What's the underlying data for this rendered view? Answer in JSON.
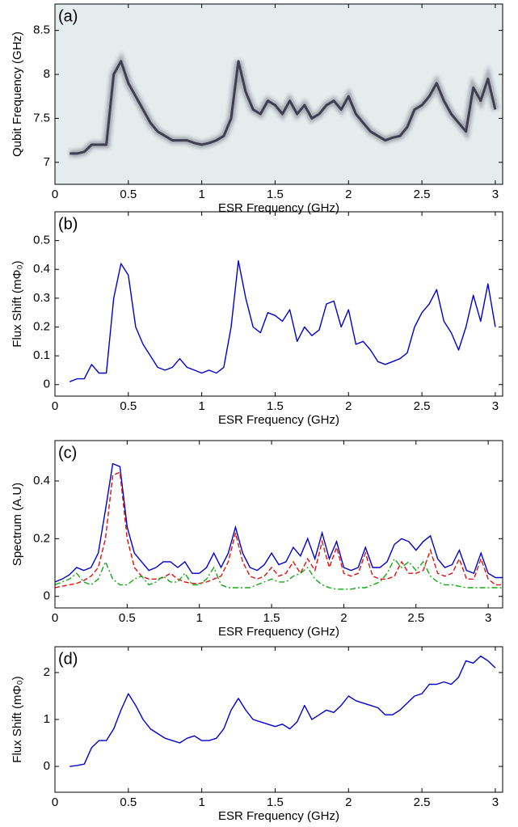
{
  "chart_data": [
    {
      "type": "heatmap",
      "panel_label": "(a)",
      "xlabel": "ESR Frequency (GHz)",
      "ylabel": "Qubit Frequency (GHz)",
      "background_color": "#e4ecee",
      "color": "#2b2d3f",
      "x": [
        0.1,
        0.15,
        0.2,
        0.25,
        0.3,
        0.35,
        0.4,
        0.45,
        0.5,
        0.55,
        0.6,
        0.65,
        0.7,
        0.75,
        0.8,
        0.85,
        0.9,
        0.95,
        1.0,
        1.05,
        1.1,
        1.15,
        1.2,
        1.25,
        1.3,
        1.35,
        1.4,
        1.45,
        1.5,
        1.55,
        1.6,
        1.65,
        1.7,
        1.75,
        1.8,
        1.85,
        1.9,
        1.95,
        2.0,
        2.05,
        2.1,
        2.15,
        2.2,
        2.25,
        2.3,
        2.35,
        2.4,
        2.45,
        2.5,
        2.55,
        2.6,
        2.65,
        2.7,
        2.75,
        2.8,
        2.85,
        2.9,
        2.95,
        3.0
      ],
      "values": [
        7.1,
        7.1,
        7.12,
        7.2,
        7.2,
        7.2,
        8.0,
        8.15,
        7.9,
        7.75,
        7.6,
        7.45,
        7.35,
        7.3,
        7.25,
        7.25,
        7.25,
        7.22,
        7.2,
        7.22,
        7.25,
        7.3,
        7.5,
        8.15,
        7.8,
        7.6,
        7.55,
        7.7,
        7.65,
        7.55,
        7.7,
        7.55,
        7.65,
        7.5,
        7.55,
        7.65,
        7.7,
        7.6,
        7.75,
        7.55,
        7.45,
        7.35,
        7.3,
        7.25,
        7.28,
        7.3,
        7.4,
        7.6,
        7.65,
        7.75,
        7.9,
        7.7,
        7.55,
        7.45,
        7.35,
        7.85,
        7.7,
        7.95,
        7.6
      ],
      "xlim": [
        0,
        3.05
      ],
      "xticks": [
        0,
        0.5,
        1,
        1.5,
        2,
        2.5,
        3
      ],
      "ylim": [
        6.75,
        8.8
      ],
      "yticks": [
        7,
        7.5,
        8,
        8.5
      ]
    },
    {
      "type": "line",
      "panel_label": "(b)",
      "xlabel": "ESR Frequency (GHz)",
      "ylabel": "Flux Shift (mΦ₀)",
      "color": "#0000cc",
      "x": [
        0.1,
        0.15,
        0.2,
        0.25,
        0.3,
        0.35,
        0.4,
        0.45,
        0.5,
        0.55,
        0.6,
        0.65,
        0.7,
        0.75,
        0.8,
        0.85,
        0.9,
        0.95,
        1.0,
        1.05,
        1.1,
        1.15,
        1.2,
        1.25,
        1.3,
        1.35,
        1.4,
        1.45,
        1.5,
        1.55,
        1.6,
        1.65,
        1.7,
        1.75,
        1.8,
        1.85,
        1.9,
        1.95,
        2.0,
        2.05,
        2.1,
        2.15,
        2.2,
        2.25,
        2.3,
        2.35,
        2.4,
        2.45,
        2.5,
        2.55,
        2.6,
        2.65,
        2.7,
        2.75,
        2.8,
        2.85,
        2.9,
        2.95,
        3.0
      ],
      "values": [
        0.01,
        0.02,
        0.02,
        0.07,
        0.04,
        0.04,
        0.3,
        0.42,
        0.38,
        0.2,
        0.14,
        0.1,
        0.06,
        0.05,
        0.06,
        0.09,
        0.06,
        0.05,
        0.04,
        0.05,
        0.04,
        0.06,
        0.2,
        0.43,
        0.3,
        0.2,
        0.18,
        0.25,
        0.24,
        0.22,
        0.26,
        0.15,
        0.2,
        0.17,
        0.19,
        0.28,
        0.29,
        0.2,
        0.26,
        0.14,
        0.15,
        0.12,
        0.08,
        0.07,
        0.08,
        0.09,
        0.11,
        0.2,
        0.25,
        0.28,
        0.33,
        0.22,
        0.18,
        0.12,
        0.2,
        0.31,
        0.22,
        0.35,
        0.2
      ],
      "xlim": [
        0,
        3.05
      ],
      "xticks": [
        0,
        0.5,
        1,
        1.5,
        2,
        2.5,
        3
      ],
      "ylim": [
        -0.04,
        0.6
      ],
      "yticks": [
        0,
        0.1,
        0.2,
        0.3,
        0.4,
        0.5
      ]
    },
    {
      "type": "line",
      "panel_label": "(c)",
      "xlabel": "ESR Frequency (GHz)",
      "ylabel": "Spectrum (A.U)",
      "x": [
        0,
        0.05,
        0.1,
        0.15,
        0.2,
        0.25,
        0.3,
        0.35,
        0.4,
        0.45,
        0.5,
        0.55,
        0.6,
        0.65,
        0.7,
        0.75,
        0.8,
        0.85,
        0.9,
        0.95,
        1.0,
        1.05,
        1.1,
        1.15,
        1.2,
        1.25,
        1.3,
        1.35,
        1.4,
        1.45,
        1.5,
        1.55,
        1.6,
        1.65,
        1.7,
        1.75,
        1.8,
        1.85,
        1.9,
        1.95,
        2.0,
        2.05,
        2.1,
        2.15,
        2.2,
        2.25,
        2.3,
        2.35,
        2.4,
        2.45,
        2.5,
        2.55,
        2.6,
        2.65,
        2.7,
        2.75,
        2.8,
        2.85,
        2.9,
        2.95,
        3.0,
        3.05,
        3.1
      ],
      "series": [
        {
          "color": "#0000cc",
          "dash": "solid",
          "values": [
            0.05,
            0.06,
            0.075,
            0.1,
            0.09,
            0.1,
            0.15,
            0.3,
            0.46,
            0.45,
            0.24,
            0.15,
            0.12,
            0.09,
            0.1,
            0.12,
            0.12,
            0.1,
            0.12,
            0.08,
            0.08,
            0.1,
            0.15,
            0.1,
            0.15,
            0.24,
            0.15,
            0.1,
            0.09,
            0.11,
            0.15,
            0.11,
            0.12,
            0.17,
            0.14,
            0.2,
            0.13,
            0.22,
            0.13,
            0.19,
            0.1,
            0.09,
            0.1,
            0.17,
            0.1,
            0.1,
            0.12,
            0.18,
            0.2,
            0.19,
            0.16,
            0.19,
            0.21,
            0.13,
            0.1,
            0.11,
            0.16,
            0.09,
            0.08,
            0.15,
            0.08,
            0.065,
            0.065
          ]
        },
        {
          "color": "#dd1111",
          "dash": "dashed",
          "values": [
            0.03,
            0.035,
            0.04,
            0.045,
            0.055,
            0.07,
            0.1,
            0.2,
            0.42,
            0.43,
            0.2,
            0.1,
            0.07,
            0.06,
            0.06,
            0.065,
            0.08,
            0.06,
            0.05,
            0.045,
            0.045,
            0.05,
            0.06,
            0.07,
            0.12,
            0.22,
            0.12,
            0.07,
            0.06,
            0.07,
            0.1,
            0.07,
            0.08,
            0.12,
            0.08,
            0.13,
            0.09,
            0.19,
            0.1,
            0.17,
            0.08,
            0.07,
            0.08,
            0.15,
            0.07,
            0.06,
            0.06,
            0.07,
            0.12,
            0.08,
            0.08,
            0.09,
            0.16,
            0.08,
            0.07,
            0.08,
            0.13,
            0.06,
            0.06,
            0.13,
            0.06,
            0.04,
            0.04
          ]
        },
        {
          "color": "#11aa11",
          "dash": "dashdot",
          "values": [
            0.04,
            0.05,
            0.06,
            0.08,
            0.05,
            0.04,
            0.06,
            0.12,
            0.06,
            0.04,
            0.04,
            0.06,
            0.07,
            0.04,
            0.05,
            0.07,
            0.05,
            0.05,
            0.08,
            0.04,
            0.04,
            0.06,
            0.1,
            0.04,
            0.03,
            0.03,
            0.03,
            0.03,
            0.04,
            0.05,
            0.06,
            0.05,
            0.05,
            0.07,
            0.08,
            0.1,
            0.06,
            0.04,
            0.03,
            0.025,
            0.025,
            0.025,
            0.03,
            0.03,
            0.04,
            0.05,
            0.08,
            0.13,
            0.1,
            0.12,
            0.09,
            0.12,
            0.07,
            0.05,
            0.04,
            0.04,
            0.035,
            0.03,
            0.03,
            0.03,
            0.03,
            0.03,
            0.03
          ]
        }
      ],
      "xlim": [
        0,
        3.1
      ],
      "xticks": [
        0,
        0.5,
        1,
        1.5,
        2,
        2.5,
        3
      ],
      "ylim": [
        -0.04,
        0.54
      ],
      "yticks": [
        0,
        0.2,
        0.4
      ]
    },
    {
      "type": "line",
      "panel_label": "(d)",
      "xlabel": "ESR Frequency (GHz)",
      "ylabel": "Flux Shift (mΦ₀)",
      "color": "#0000cc",
      "x": [
        0.1,
        0.15,
        0.2,
        0.25,
        0.3,
        0.35,
        0.4,
        0.45,
        0.5,
        0.55,
        0.6,
        0.65,
        0.7,
        0.75,
        0.8,
        0.85,
        0.9,
        0.95,
        1.0,
        1.05,
        1.1,
        1.15,
        1.2,
        1.25,
        1.3,
        1.35,
        1.4,
        1.45,
        1.5,
        1.55,
        1.6,
        1.65,
        1.7,
        1.75,
        1.8,
        1.85,
        1.9,
        1.95,
        2.0,
        2.05,
        2.1,
        2.15,
        2.2,
        2.25,
        2.3,
        2.35,
        2.4,
        2.45,
        2.5,
        2.55,
        2.6,
        2.65,
        2.7,
        2.75,
        2.8,
        2.85,
        2.9,
        2.95,
        3.0
      ],
      "values": [
        0,
        0.02,
        0.05,
        0.4,
        0.55,
        0.55,
        0.8,
        1.2,
        1.55,
        1.3,
        1.0,
        0.8,
        0.7,
        0.6,
        0.55,
        0.5,
        0.6,
        0.65,
        0.55,
        0.55,
        0.6,
        0.8,
        1.2,
        1.45,
        1.2,
        1.0,
        0.95,
        0.9,
        0.85,
        0.9,
        0.8,
        0.95,
        1.3,
        1.0,
        1.1,
        1.2,
        1.15,
        1.3,
        1.5,
        1.4,
        1.35,
        1.3,
        1.25,
        1.1,
        1.1,
        1.2,
        1.35,
        1.5,
        1.55,
        1.75,
        1.75,
        1.8,
        1.75,
        1.9,
        2.25,
        2.2,
        2.35,
        2.25,
        2.1
      ],
      "xlim": [
        0,
        3.05
      ],
      "xticks": [
        0,
        0.5,
        1,
        1.5,
        2,
        2.5,
        3
      ],
      "ylim": [
        -0.55,
        2.55
      ],
      "yticks": [
        0,
        1,
        2
      ]
    }
  ]
}
